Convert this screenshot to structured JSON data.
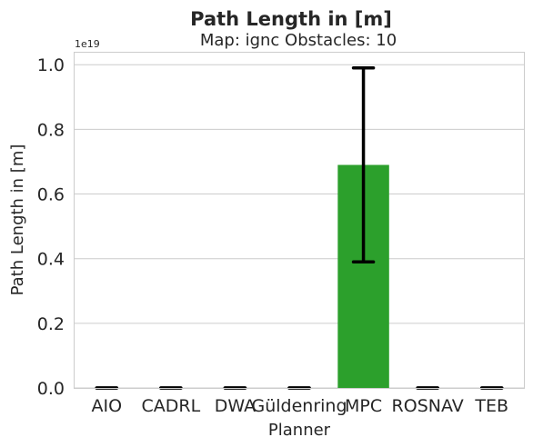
{
  "chart_data": {
    "type": "bar",
    "title": "Path Length in [m]",
    "subtitle": "Map: ignc Obstacles: 10",
    "xlabel": "Planner",
    "ylabel": "Path Length in [m]",
    "offset_label": "1e19",
    "categories": [
      "AIO",
      "CADRL",
      "DWA",
      "Güldenring",
      "MPC",
      "ROSNAV",
      "TEB"
    ],
    "values": [
      0,
      0,
      0,
      0,
      0.69,
      0,
      0
    ],
    "error_low": [
      0,
      0,
      0,
      0,
      0.39,
      0,
      0
    ],
    "error_high": [
      0,
      0,
      0,
      0,
      0.99,
      0,
      0
    ],
    "value_scale": "1e19",
    "ylim": [
      0,
      1.04
    ],
    "yticks": [
      "0.0",
      "0.2",
      "0.4",
      "0.6",
      "0.8",
      "1.0"
    ],
    "grid": "y",
    "colors": [
      "#1f77b4",
      "#ff7f0e",
      "#2ca02c",
      "#d62728",
      "#2ca02c",
      "#8c564b",
      "#e377c2"
    ],
    "bar_colors": {
      "MPC": "#2ca02c"
    }
  }
}
